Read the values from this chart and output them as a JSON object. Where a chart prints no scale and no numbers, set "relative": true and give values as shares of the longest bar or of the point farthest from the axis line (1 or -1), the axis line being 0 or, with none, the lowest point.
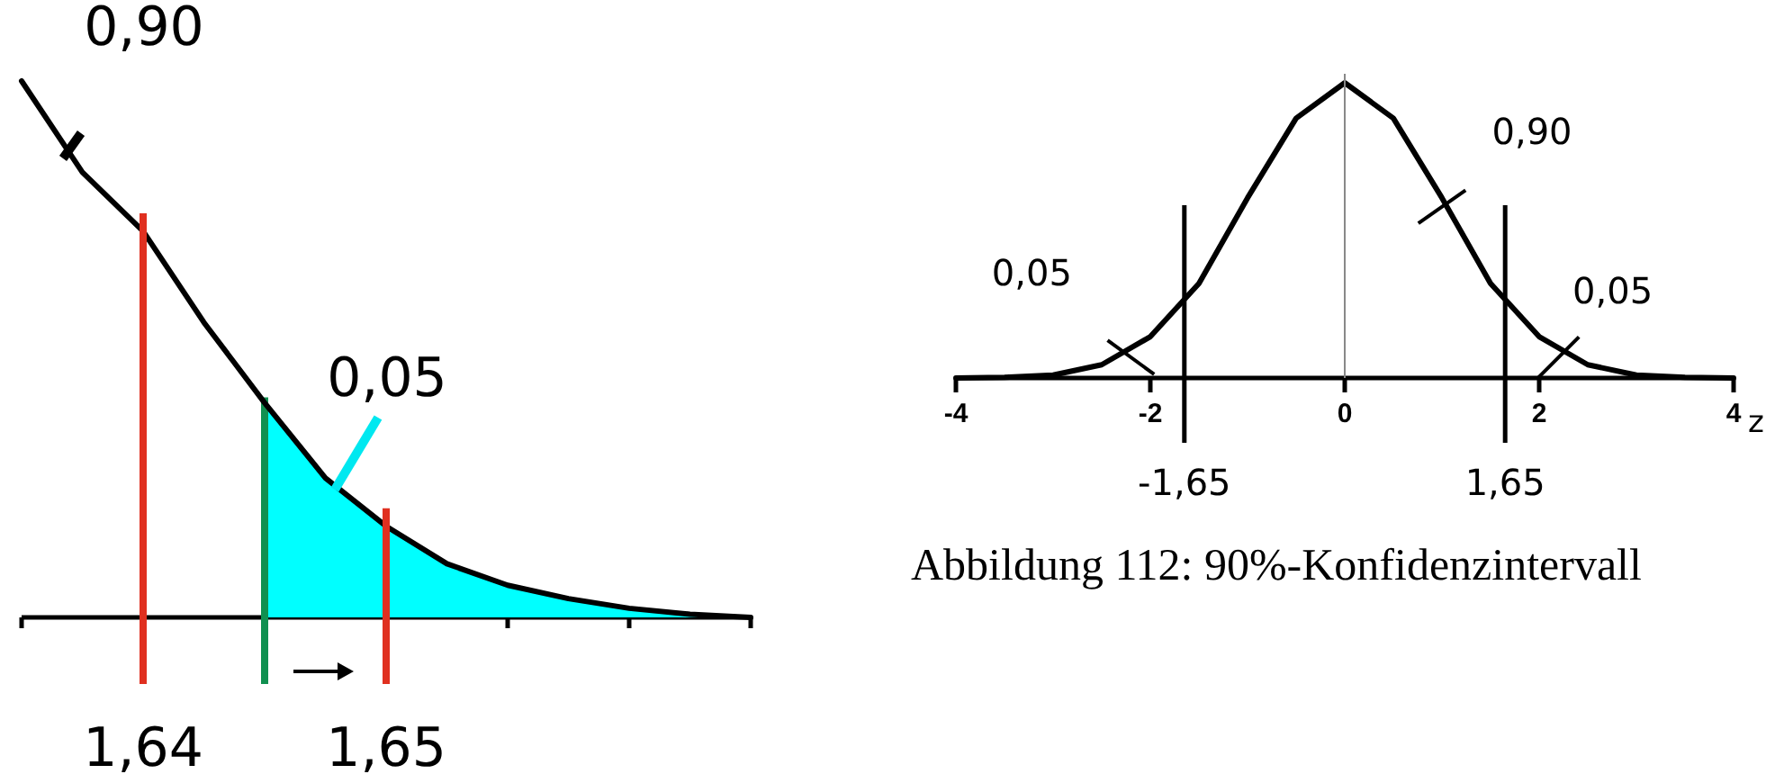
{
  "chart_data": [
    {
      "type": "line",
      "relative": true,
      "categories": [
        null,
        null,
        "1,64",
        null,
        null,
        null,
        "1,65",
        null,
        null,
        null,
        null,
        null,
        null
      ],
      "series": [
        {
          "color": "#000000",
          "values": [
            1.0,
            0.83,
            0.72,
            0.55,
            0.4,
            0.26,
            0.17,
            0.1,
            0.06,
            0.035,
            0.017,
            0.006,
            0
          ],
          "lower": [
            null,
            null,
            null,
            null,
            0,
            0,
            0,
            0,
            0,
            0,
            0,
            0,
            0
          ],
          "upper": [
            null,
            null,
            null,
            null,
            0.4,
            0.26,
            0.17,
            0.1,
            0.06,
            0.035,
            0.017,
            0.006,
            0
          ]
        }
      ],
      "ref_lines": [
        {
          "axis": "x",
          "value": "1,64",
          "color": "#e03020"
        },
        {
          "axis": "x",
          "value": "1,65",
          "color": "#e03020"
        }
      ],
      "annotations": [
        "0,90",
        "0,05"
      ]
    },
    {
      "type": "line",
      "relative": true,
      "x": [
        -4,
        -3.5,
        -3,
        -2.5,
        -2,
        -1.5,
        -1,
        -0.5,
        0,
        0.5,
        1,
        1.5,
        2,
        2.5,
        3,
        3.5,
        4
      ],
      "series": [
        {
          "color": "#000000",
          "values": [
            0,
            0.002,
            0.01,
            0.045,
            0.14,
            0.32,
            0.61,
            0.88,
            1,
            0.88,
            0.61,
            0.32,
            0.14,
            0.045,
            0.01,
            0.002,
            0
          ]
        }
      ],
      "xlim": [
        -4,
        4
      ],
      "xticks": [
        -4,
        -2,
        0,
        2,
        4
      ],
      "xlabel": "z",
      "ref_lines": [
        {
          "axis": "x",
          "value": 0,
          "label": null,
          "color": "#888888"
        },
        {
          "axis": "x",
          "value": -1.65,
          "label": "-1,65",
          "color": "#000000"
        },
        {
          "axis": "x",
          "value": 1.65,
          "label": "1,65",
          "color": "#000000"
        }
      ],
      "annotations": [
        {
          "text": "0,05",
          "x": -2.2,
          "y": 0.07
        },
        {
          "text": "0,90",
          "x": 1.0,
          "y": 0.58
        },
        {
          "text": "0,05",
          "x": 2.2,
          "y": 0.07
        },
        "Abbildung 112: 90%-Konfidenzintervall"
      ]
    }
  ]
}
